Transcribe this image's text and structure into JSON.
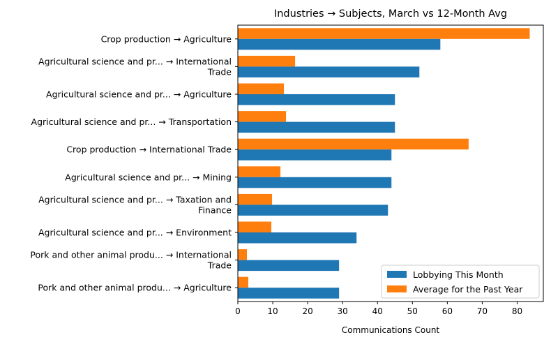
{
  "chart_data": {
    "type": "bar",
    "orientation": "horizontal",
    "title": "Industries → Subjects, March vs 12-Month Avg",
    "xlabel": "Communications Count",
    "ylabel": "",
    "xlim": [
      0,
      87.5
    ],
    "xticks": [
      0,
      10,
      20,
      30,
      40,
      50,
      60,
      70,
      80
    ],
    "grid": false,
    "legend_position": "lower-right",
    "categories": [
      [
        "Crop production → Agriculture"
      ],
      [
        "Agricultural science and pr... → International",
        "Trade"
      ],
      [
        "Agricultural science and pr... → Agriculture"
      ],
      [
        "Agricultural science and pr... → Transportation"
      ],
      [
        "Crop production → International Trade"
      ],
      [
        "Agricultural science and pr... → Mining"
      ],
      [
        "Agricultural science and pr... → Taxation and",
        "Finance"
      ],
      [
        "Agricultural science and pr... → Environment"
      ],
      [
        "Pork and other animal produ... → International",
        "Trade"
      ],
      [
        "Pork and other animal produ... → Agriculture"
      ]
    ],
    "series": [
      {
        "name": "Lobbying This Month",
        "color": "#1f77b4",
        "values": [
          58,
          52,
          45,
          45,
          44,
          44,
          43,
          34,
          29,
          29
        ]
      },
      {
        "name": "Average for the Past Year",
        "color": "#ff7f0e",
        "values": [
          83.6,
          16.4,
          13.2,
          13.8,
          66.1,
          12.2,
          9.8,
          9.6,
          2.6,
          3.0
        ]
      }
    ]
  }
}
